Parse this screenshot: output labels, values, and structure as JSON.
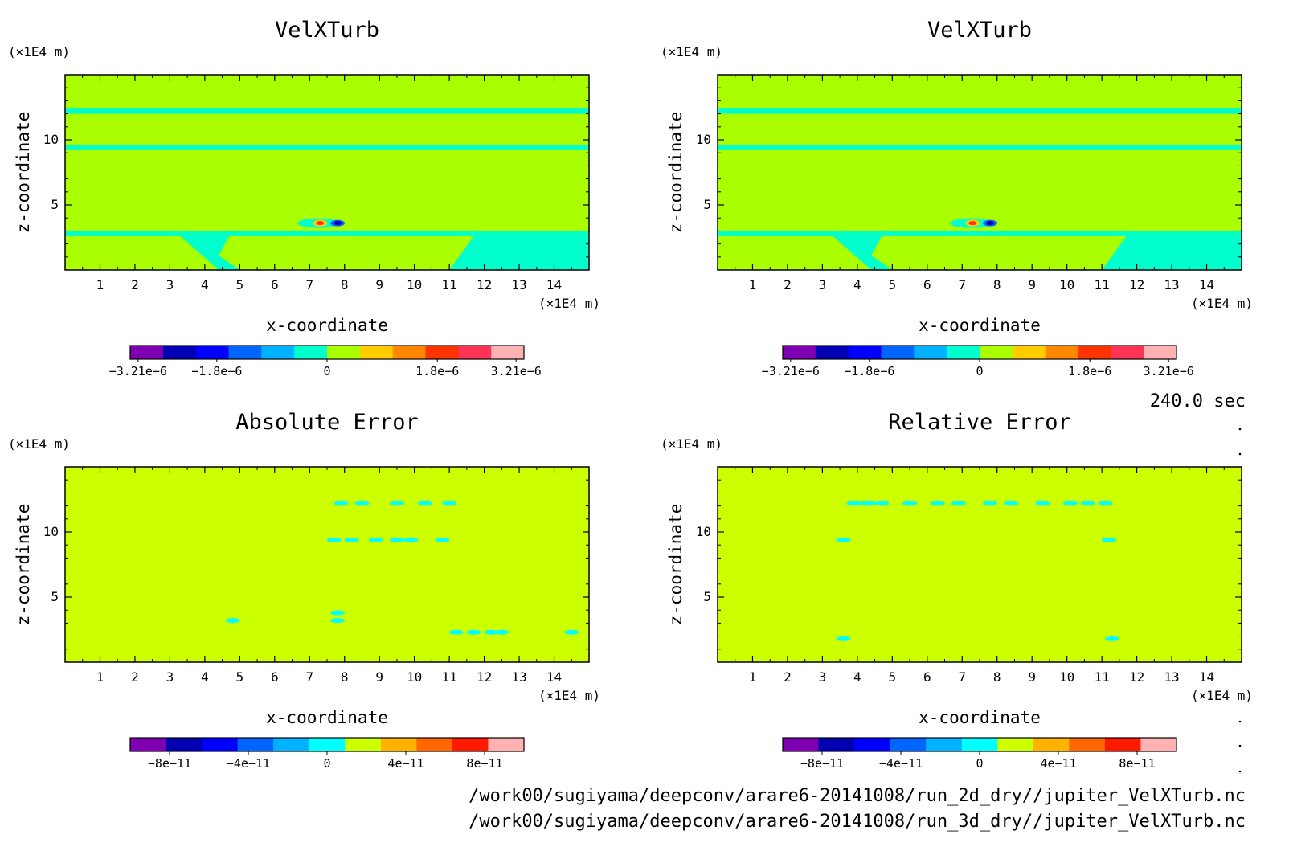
{
  "time_label": "240.0 sec",
  "file_paths": [
    "/work00/sugiyama/deepconv/arare6-20141008/run_2d_dry//jupiter_VelXTurb.nc",
    "/work00/sugiyama/deepconv/arare6-20141008/run_3d_dry//jupiter_VelXTurb.nc"
  ],
  "colors": {
    "background_field_top": "#aaff00",
    "background_field_bottom": "#ccff00",
    "cyan_band": "#00ffcc",
    "cyan_blob": "#00ffff",
    "frame": "#000000"
  },
  "chart_data": [
    {
      "type": "heatmap",
      "title": "VelXTurb",
      "xlabel": "x-coordinate",
      "ylabel": "z-coordinate",
      "x_unit": "(×1E4 m)",
      "y_unit": "(×1E4 m)",
      "xlim": [
        0,
        15
      ],
      "ylim": [
        0,
        15
      ],
      "x_ticks": [
        "1",
        "2",
        "3",
        "4",
        "5",
        "6",
        "7",
        "8",
        "9",
        "10",
        "11",
        "12",
        "13",
        "14"
      ],
      "y_ticks": [
        "5",
        "10"
      ],
      "colorbar": {
        "colors": [
          "#7f00b2",
          "#0000b2",
          "#0000ff",
          "#0066ff",
          "#00b2ff",
          "#00ffcc",
          "#aaff00",
          "#ffcc00",
          "#ff8800",
          "#ff3300",
          "#ff3355",
          "#ffb2b2"
        ],
        "tick_labels": [
          "-3.21e-6",
          "-1.8e-6",
          "0",
          "1.8e-6",
          "3.21e-6"
        ]
      },
      "features": [
        {
          "kind": "band",
          "z": [
            12.0,
            12.4
          ],
          "x": [
            0,
            15
          ]
        },
        {
          "kind": "band",
          "z": [
            9.2,
            9.6
          ],
          "x": [
            0,
            15
          ]
        },
        {
          "kind": "band",
          "z": [
            2.6,
            3.0
          ],
          "x": [
            0,
            15
          ]
        },
        {
          "kind": "dipole",
          "x": [
            7.3,
            7.8
          ],
          "z": 3.6,
          "values": [
            "positive",
            "negative"
          ]
        }
      ]
    },
    {
      "type": "heatmap",
      "title": "VelXTurb",
      "xlabel": "x-coordinate",
      "ylabel": "z-coordinate",
      "x_unit": "(×1E4 m)",
      "y_unit": "(×1E4 m)",
      "xlim": [
        0,
        15
      ],
      "ylim": [
        0,
        15
      ],
      "x_ticks": [
        "1",
        "2",
        "3",
        "4",
        "5",
        "6",
        "7",
        "8",
        "9",
        "10",
        "11",
        "12",
        "13",
        "14"
      ],
      "y_ticks": [
        "5",
        "10"
      ],
      "colorbar": {
        "colors": [
          "#7f00b2",
          "#0000b2",
          "#0000ff",
          "#0066ff",
          "#00b2ff",
          "#00ffcc",
          "#aaff00",
          "#ffcc00",
          "#ff8800",
          "#ff3300",
          "#ff3355",
          "#ffb2b2"
        ],
        "tick_labels": [
          "-3.21e-6",
          "-1.8e-6",
          "0",
          "1.8e-6",
          "3.21e-6"
        ]
      },
      "features": [
        {
          "kind": "band",
          "z": [
            12.0,
            12.4
          ],
          "x": [
            0,
            15
          ]
        },
        {
          "kind": "band",
          "z": [
            9.2,
            9.6
          ],
          "x": [
            0,
            15
          ]
        },
        {
          "kind": "band",
          "z": [
            2.6,
            3.0
          ],
          "x": [
            0,
            15
          ]
        },
        {
          "kind": "dipole",
          "x": [
            7.3,
            7.8
          ],
          "z": 3.6,
          "values": [
            "positive",
            "negative"
          ]
        }
      ]
    },
    {
      "type": "heatmap",
      "title": "Absolute Error",
      "xlabel": "x-coordinate",
      "ylabel": "z-coordinate",
      "x_unit": "(×1E4 m)",
      "y_unit": "(×1E4 m)",
      "xlim": [
        0,
        15
      ],
      "ylim": [
        0,
        15
      ],
      "x_ticks": [
        "1",
        "2",
        "3",
        "4",
        "5",
        "6",
        "7",
        "8",
        "9",
        "10",
        "11",
        "12",
        "13",
        "14"
      ],
      "y_ticks": [
        "5",
        "10"
      ],
      "colorbar": {
        "colors": [
          "#7f00b2",
          "#0000b2",
          "#0000ff",
          "#0066ff",
          "#00b2ff",
          "#00ffff",
          "#ccff00",
          "#ffb200",
          "#ff6600",
          "#ff1a00",
          "#ffb2b2"
        ],
        "tick_labels": [
          "-8e-11",
          "-4e-11",
          "0",
          "4e-11",
          "8e-11"
        ]
      },
      "features": [
        {
          "kind": "blobs",
          "z": 12.2,
          "x": [
            7.9,
            8.5,
            9.5,
            10.3,
            11.0
          ]
        },
        {
          "kind": "blobs",
          "z": 9.4,
          "x": [
            7.7,
            8.2,
            8.9,
            9.5,
            9.9,
            10.8
          ]
        },
        {
          "kind": "blobs",
          "z": 3.8,
          "x": [
            7.8
          ]
        },
        {
          "kind": "blobs",
          "z": 3.2,
          "x": [
            4.8,
            7.8
          ]
        },
        {
          "kind": "blobs",
          "z": 2.3,
          "x": [
            11.2,
            11.7,
            12.2,
            12.5,
            14.5
          ]
        }
      ]
    },
    {
      "type": "heatmap",
      "title": "Relative Error",
      "xlabel": "x-coordinate",
      "ylabel": "z-coordinate",
      "x_unit": "(×1E4 m)",
      "y_unit": "(×1E4 m)",
      "xlim": [
        0,
        15
      ],
      "ylim": [
        0,
        15
      ],
      "x_ticks": [
        "1",
        "2",
        "3",
        "4",
        "5",
        "6",
        "7",
        "8",
        "9",
        "10",
        "11",
        "12",
        "13",
        "14"
      ],
      "y_ticks": [
        "5",
        "10"
      ],
      "colorbar": {
        "colors": [
          "#7f00b2",
          "#0000b2",
          "#0000ff",
          "#0066ff",
          "#00b2ff",
          "#00ffff",
          "#ccff00",
          "#ffb200",
          "#ff6600",
          "#ff1a00",
          "#ffb2b2"
        ],
        "tick_labels": [
          "-8e-11",
          "-4e-11",
          "0",
          "4e-11",
          "8e-11"
        ]
      },
      "features": [
        {
          "kind": "blobs",
          "z": 12.2,
          "x": [
            3.9,
            4.3,
            4.7,
            5.5,
            6.3,
            6.9,
            7.8,
            8.4,
            9.3,
            10.1,
            10.6,
            11.1
          ]
        },
        {
          "kind": "blobs",
          "z": 9.4,
          "x": [
            3.6,
            11.2
          ]
        },
        {
          "kind": "blobs",
          "z": 1.8,
          "x": [
            3.6,
            11.3
          ]
        }
      ]
    }
  ]
}
